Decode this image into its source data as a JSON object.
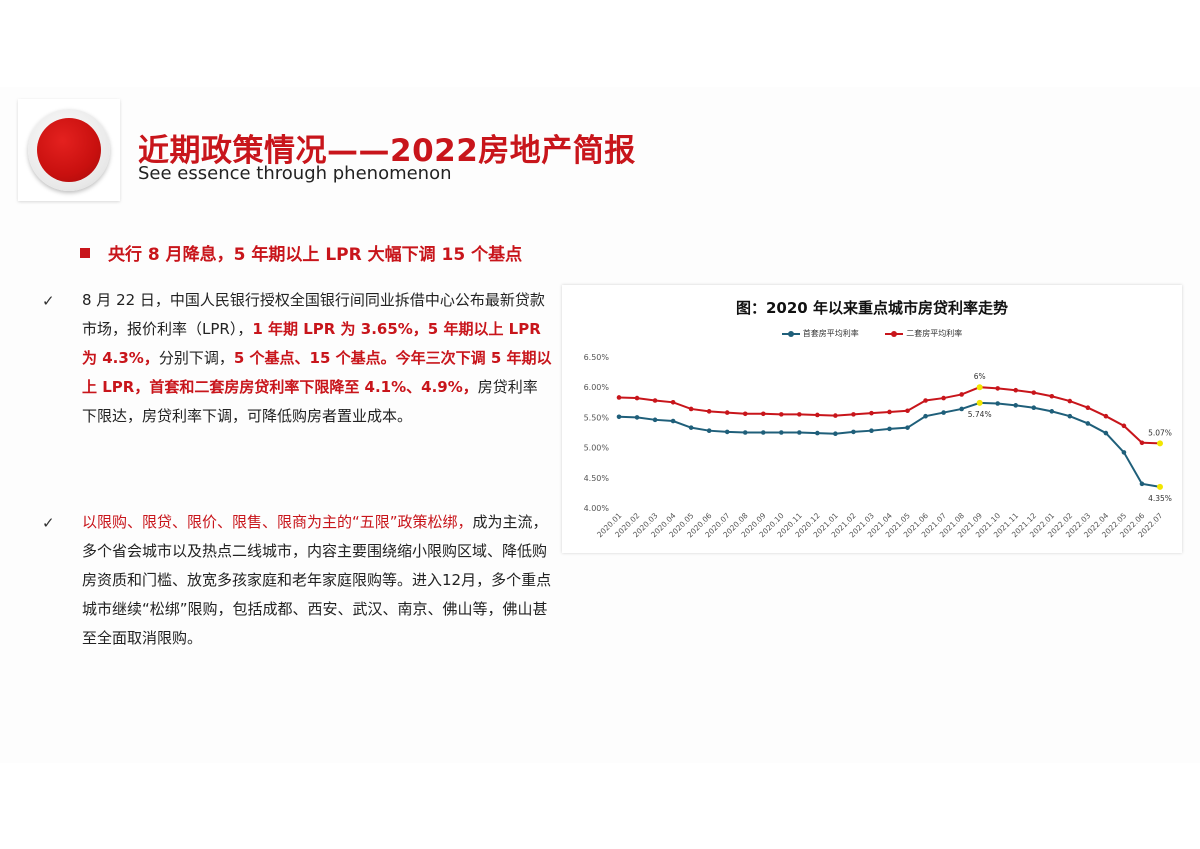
{
  "header": {
    "title": "近期政策情况——2022房地产简报",
    "subtitle": "See essence through phenomenon"
  },
  "section_heading": "央行 8 月降息，5 年期以上 LPR 大幅下调 15 个基点",
  "check_mark": "✓",
  "paragraph1": {
    "t1": "8 月 22 日，中国人民银行授权全国银行间同业拆借中心公布最新贷款市场，报价利率（LPR），",
    "t2": "1 年期 LPR 为 3.65%，5 年期以上 LPR 为 4.3%，",
    "t3": "分别下调，",
    "t4": "5 个基点、15 个基点。今年三次下调 5 年期以上 LPR，首套和二套房房贷利率下限降至 4.1%、4.9%，",
    "t5": "房贷利率下限达，房贷利率下调，可降低购房者置业成本。"
  },
  "paragraph2": {
    "t1": "以限购、限贷、限价、限售、限商为主的“五限”政策松绑，",
    "t2": "成为主流，多个省会城市以及热点二线城市，内容主要围绕缩小限购区域、降低购房资质和门槛、放宽多孩家庭和老年家庭限购等。进入12月，多个重点城市继续“松绑”限购，包括成都、西安、武汉、南京、佛山等，佛山甚至全面取消限购。"
  },
  "chart_data": {
    "type": "line",
    "title": "图：2020 年以来重点城市房贷利率走势",
    "x": [
      "2020.01",
      "2020.02",
      "2020.03",
      "2020.04",
      "2020.05",
      "2020.06",
      "2020.07",
      "2020.08",
      "2020.09",
      "2020.10",
      "2020.11",
      "2020.12",
      "2021.01",
      "2021.02",
      "2021.03",
      "2021.04",
      "2021.05",
      "2021.06",
      "2021.07",
      "2021.08",
      "2021.09",
      "2021.10",
      "2021.11",
      "2021.12",
      "2022.01",
      "2022.02",
      "2022.03",
      "2022.04",
      "2022.05",
      "2022.06",
      "2022.07"
    ],
    "series": [
      {
        "name": "首套房平均利率",
        "color": "#1f5f7a",
        "values": [
          5.51,
          5.5,
          5.46,
          5.44,
          5.33,
          5.28,
          5.26,
          5.25,
          5.25,
          5.25,
          5.25,
          5.24,
          5.23,
          5.26,
          5.28,
          5.31,
          5.33,
          5.52,
          5.58,
          5.64,
          5.74,
          5.73,
          5.7,
          5.66,
          5.6,
          5.52,
          5.4,
          5.24,
          4.92,
          4.4,
          4.35
        ]
      },
      {
        "name": "二套房平均利率",
        "color": "#c8151b",
        "values": [
          5.83,
          5.82,
          5.78,
          5.75,
          5.64,
          5.6,
          5.58,
          5.56,
          5.56,
          5.55,
          5.55,
          5.54,
          5.53,
          5.55,
          5.57,
          5.59,
          5.61,
          5.78,
          5.82,
          5.88,
          6.0,
          5.98,
          5.95,
          5.91,
          5.85,
          5.77,
          5.66,
          5.52,
          5.36,
          5.08,
          5.07
        ]
      }
    ],
    "yticks": [
      "6.50%",
      "6.00%",
      "5.50%",
      "5.00%",
      "4.50%",
      "4.00%"
    ],
    "ylim": [
      4.0,
      6.5
    ],
    "annotations": [
      {
        "label": "6%",
        "series": 1,
        "index": 20
      },
      {
        "label": "5.74%",
        "series": 0,
        "index": 20
      },
      {
        "label": "5.07%",
        "series": 1,
        "index": 30
      },
      {
        "label": "4.35%",
        "series": 0,
        "index": 30
      }
    ],
    "highlight_color": "#f2e600"
  }
}
